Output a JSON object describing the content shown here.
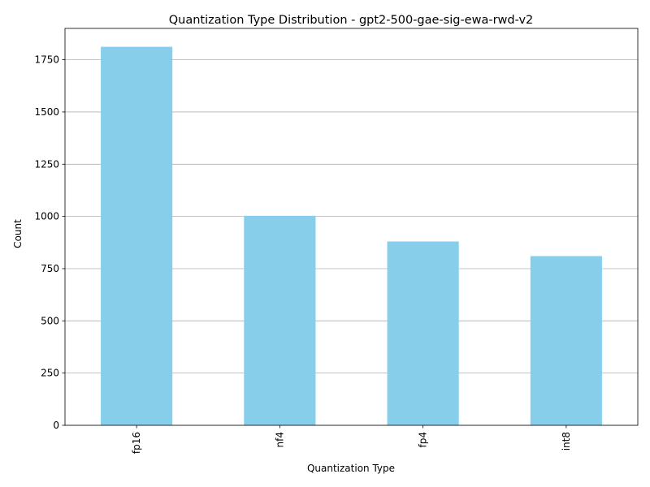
{
  "chart_data": {
    "type": "bar",
    "title": "Quantization Type Distribution - gpt2-500-gae-sig-ewa-rwd-v2",
    "xlabel": "Quantization Type",
    "ylabel": "Count",
    "categories": [
      "fp16",
      "nf4",
      "fp4",
      "int8"
    ],
    "values": [
      1812,
      1003,
      880,
      810
    ],
    "ylim": [
      0,
      1900
    ],
    "yticks": [
      0,
      250,
      500,
      750,
      1000,
      1250,
      1500,
      1750
    ],
    "ytick_labels": [
      "0",
      "250",
      "500",
      "750",
      "1000",
      "1250",
      "1500",
      "1750"
    ],
    "grid": "y",
    "legend": "none",
    "x_tick_rotation": "vertical",
    "colors": {
      "bar": "#87ceeb",
      "grid": "#b0b0b0",
      "axis": "#000000"
    }
  }
}
